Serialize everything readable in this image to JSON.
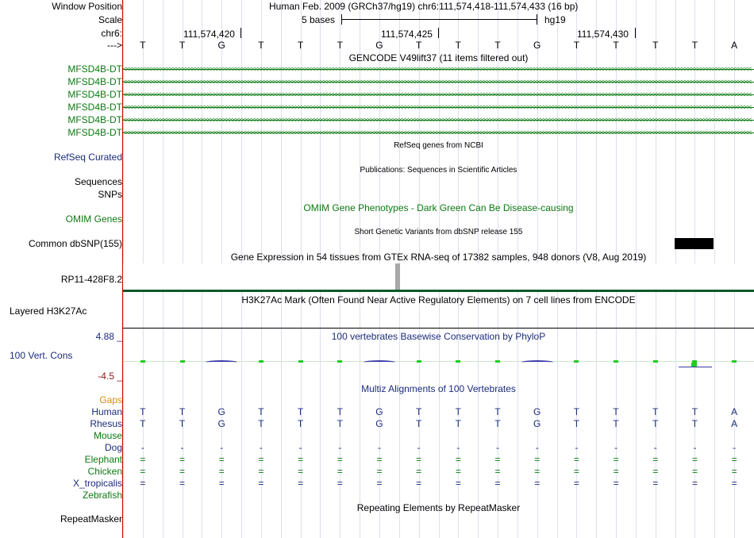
{
  "labels": {
    "window_position": "Window Position",
    "scale": "Scale",
    "chr": "chr6:",
    "strand": "--->",
    "gencode_items": [
      "MFSD4B-DT",
      "MFSD4B-DT",
      "MFSD4B-DT",
      "MFSD4B-DT",
      "MFSD4B-DT",
      "MFSD4B-DT"
    ],
    "refseq": "RefSeq Curated",
    "sequences": "Sequences",
    "snps": "SNPs",
    "omim": "OMIM Genes",
    "dbsnp": "Common dbSNP(155)",
    "gtex": "RP11-428F8.2",
    "h3k27ac": "Layered H3K27Ac",
    "cons_max": "4.88 _",
    "cons": "100 Vert. Cons",
    "cons_min": "-4.5 _",
    "gaps": "Gaps",
    "species": [
      "Human",
      "Rhesus",
      "Mouse",
      "Dog",
      "Elephant",
      "Chicken",
      "X_tropicalis",
      "Zebrafish"
    ],
    "repeatmasker": "RepeatMasker"
  },
  "header": {
    "assembly": "Human Feb. 2009 (GRCh37/hg19)   chr6:111,574,418-111,574,433 (16 bp)",
    "scale_bar": "5 bases",
    "db": "hg19",
    "pos1": "111,574,420",
    "pos2": "111,574,425",
    "pos3": "111,574,430"
  },
  "bases": [
    "T",
    "T",
    "G",
    "T",
    "T",
    "T",
    "G",
    "T",
    "T",
    "T",
    "G",
    "T",
    "T",
    "T",
    "T",
    "A"
  ],
  "tracks": {
    "gencode": "GENCODE V49lift37 (11 items filtered out)",
    "refseq": "RefSeq genes from NCBI",
    "publications": "Publications: Sequences in Scientific Articles",
    "omim": "OMIM Gene Phenotypes - Dark Green Can Be Disease-causing",
    "dbsnp": "Short Genetic Variants from dbSNP release 155",
    "gtex": "Gene Expression in 54 tissues from GTEx RNA-seq of 17382 samples, 948 donors (V8, Aug 2019)",
    "h3k27ac": "H3K27Ac Mark (Often Found Near Active Regulatory Elements) on 7 cell lines from ENCODE",
    "cons": "100 vertebrates Basewise Conservation by PhyloP",
    "multiz": "Multiz Alignments of 100 Vertebrates",
    "repeatmasker": "Repeating Elements by RepeatMasker"
  },
  "alignment": {
    "rhesus": [
      "T",
      "T",
      "G",
      "T",
      "T",
      "T",
      "G",
      "T",
      "T",
      "T",
      "G",
      "T",
      "T",
      "T",
      "T",
      "A"
    ],
    "dog": [
      "-",
      "-",
      "-",
      "-",
      "-",
      "-",
      "-",
      "-",
      "-",
      "-",
      "-",
      "-",
      "-",
      "-",
      "-",
      "-"
    ],
    "elephant": [
      "=",
      "=",
      "=",
      "=",
      "=",
      "=",
      "=",
      "=",
      "=",
      "=",
      "=",
      "=",
      "=",
      "=",
      "=",
      "="
    ],
    "chicken": [
      "=",
      "=",
      "=",
      "=",
      "=",
      "=",
      "=",
      "=",
      "=",
      "=",
      "=",
      "=",
      "=",
      "=",
      "=",
      "="
    ],
    "x_tropicalis": [
      "=",
      "=",
      "=",
      "=",
      "=",
      "=",
      "=",
      "=",
      "=",
      "=",
      "=",
      "=",
      "=",
      "=",
      "=",
      "="
    ]
  },
  "colors": {
    "gene_green": "#0c7a12",
    "navy": "#1c2c7c",
    "gaps_orange": "#d98c12",
    "cons_min_maroon": "#8b1a1a",
    "grid": "#dde0ee",
    "left_border_red": "#cc0000"
  }
}
